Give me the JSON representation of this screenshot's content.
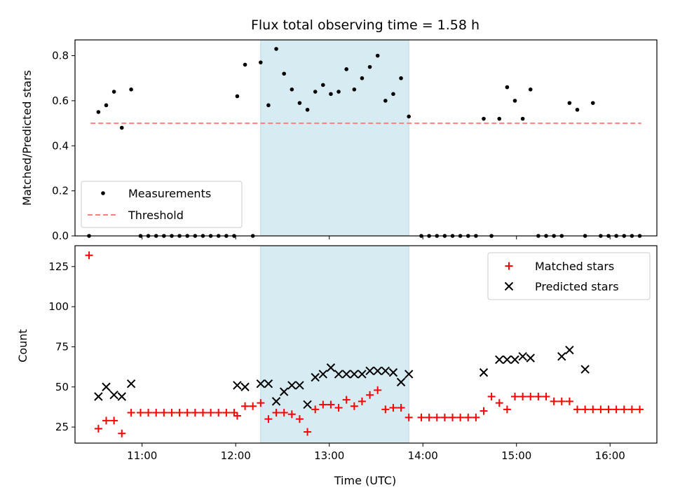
{
  "chart_data": [
    {
      "type": "scatter",
      "title": "Flux total observing time = 1.58 h",
      "xlabel": "",
      "ylabel": "Matched/Predicted stars",
      "ylim": [
        0.0,
        0.87
      ],
      "xlim": [
        "10:17",
        "16:30"
      ],
      "yticks": [
        "0.0",
        "0.2",
        "0.4",
        "0.6",
        "0.8"
      ],
      "grid": false,
      "legend_position": "lower-left",
      "shaded_interval": {
        "start": "12:16",
        "end": "13:51",
        "color": "#add8e6"
      },
      "threshold": {
        "name": "Threshold",
        "value": 0.5,
        "start": "10:27",
        "end": "16:20",
        "color": "#ff7f7f"
      },
      "series": [
        {
          "name": "Measurements",
          "color": "#000000",
          "marker": "dot",
          "x": [
            "10:26",
            "10:32",
            "10:37",
            "10:42",
            "10:47",
            "10:53",
            "10:59",
            "11:04",
            "11:09",
            "11:14",
            "11:19",
            "11:24",
            "11:29",
            "11:34",
            "11:39",
            "11:44",
            "11:49",
            "11:54",
            "11:59",
            "12:01",
            "12:06",
            "12:11",
            "12:16",
            "12:21",
            "12:26",
            "12:31",
            "12:36",
            "12:41",
            "12:46",
            "12:51",
            "12:56",
            "13:01",
            "13:06",
            "13:11",
            "13:16",
            "13:21",
            "13:26",
            "13:31",
            "13:36",
            "13:41",
            "13:46",
            "13:51",
            "13:59",
            "14:04",
            "14:09",
            "14:14",
            "14:19",
            "14:24",
            "14:29",
            "14:34",
            "14:39",
            "14:44",
            "14:49",
            "14:54",
            "14:59",
            "15:04",
            "15:09",
            "15:14",
            "15:19",
            "15:24",
            "15:29",
            "15:34",
            "15:39",
            "15:44",
            "15:49",
            "15:54",
            "15:59",
            "16:04",
            "16:09",
            "16:14",
            "16:19"
          ],
          "values": [
            0.0,
            0.55,
            0.58,
            0.64,
            0.48,
            0.65,
            0.0,
            0.0,
            0.0,
            0.0,
            0.0,
            0.0,
            0.0,
            0.0,
            0.0,
            0.0,
            0.0,
            0.0,
            0.0,
            0.62,
            0.76,
            0.0,
            0.77,
            0.58,
            0.83,
            0.72,
            0.65,
            0.59,
            0.56,
            0.64,
            0.67,
            0.63,
            0.64,
            0.74,
            0.65,
            0.7,
            0.75,
            0.8,
            0.6,
            0.63,
            0.7,
            0.53,
            0.0,
            0.0,
            0.0,
            0.0,
            0.0,
            0.0,
            0.0,
            0.0,
            0.52,
            0.0,
            0.52,
            0.66,
            0.6,
            0.52,
            0.65,
            0.0,
            0.0,
            0.0,
            0.0,
            0.59,
            0.56,
            0.0,
            0.59,
            0.0,
            0.0,
            0.0,
            0.0,
            0.0,
            0.0
          ]
        }
      ]
    },
    {
      "type": "scatter",
      "title": "",
      "xlabel": "Time (UTC)",
      "ylabel": "Count",
      "ylim": [
        15,
        138
      ],
      "xlim": [
        "10:17",
        "16:30"
      ],
      "yticks": [
        "25",
        "50",
        "75",
        "100",
        "125"
      ],
      "xticks": [
        "11:00",
        "12:00",
        "13:00",
        "14:00",
        "15:00",
        "16:00"
      ],
      "grid": false,
      "legend_position": "upper-right",
      "shaded_interval": {
        "start": "12:16",
        "end": "13:51",
        "color": "#add8e6"
      },
      "series": [
        {
          "name": "Matched stars",
          "color": "#ff0000",
          "marker": "plus",
          "x": [
            "10:26",
            "10:32",
            "10:37",
            "10:42",
            "10:47",
            "10:53",
            "10:59",
            "11:04",
            "11:09",
            "11:14",
            "11:19",
            "11:24",
            "11:29",
            "11:34",
            "11:39",
            "11:44",
            "11:49",
            "11:54",
            "11:59",
            "12:01",
            "12:06",
            "12:11",
            "12:16",
            "12:21",
            "12:26",
            "12:31",
            "12:36",
            "12:41",
            "12:46",
            "12:51",
            "12:56",
            "13:01",
            "13:06",
            "13:11",
            "13:16",
            "13:21",
            "13:26",
            "13:31",
            "13:36",
            "13:41",
            "13:46",
            "13:51",
            "13:59",
            "14:04",
            "14:09",
            "14:14",
            "14:19",
            "14:24",
            "14:29",
            "14:34",
            "14:39",
            "14:44",
            "14:49",
            "14:54",
            "14:59",
            "15:04",
            "15:09",
            "15:14",
            "15:19",
            "15:24",
            "15:29",
            "15:34",
            "15:39",
            "15:44",
            "15:49",
            "15:54",
            "15:59",
            "16:04",
            "16:09",
            "16:14",
            "16:19"
          ],
          "values": [
            132,
            24,
            29,
            29,
            21,
            34,
            34,
            34,
            34,
            34,
            34,
            34,
            34,
            34,
            34,
            34,
            34,
            34,
            34,
            32,
            38,
            38,
            40,
            30,
            34,
            34,
            33,
            30,
            22,
            36,
            39,
            39,
            37,
            42,
            38,
            41,
            45,
            48,
            36,
            37,
            37,
            31,
            31,
            31,
            31,
            31,
            31,
            31,
            31,
            31,
            35,
            44,
            40,
            36,
            44,
            44,
            44,
            44,
            44,
            41,
            41,
            41,
            36,
            36,
            36,
            36,
            36,
            36,
            36,
            36,
            36
          ]
        },
        {
          "name": "Predicted stars",
          "color": "#000000",
          "marker": "x",
          "x": [
            "10:32",
            "10:37",
            "10:42",
            "10:47",
            "10:53",
            "12:01",
            "12:06",
            "12:16",
            "12:21",
            "12:26",
            "12:31",
            "12:36",
            "12:41",
            "12:46",
            "12:51",
            "12:56",
            "13:01",
            "13:06",
            "13:11",
            "13:16",
            "13:21",
            "13:26",
            "13:31",
            "13:36",
            "13:41",
            "13:46",
            "13:51",
            "14:39",
            "14:49",
            "14:54",
            "14:59",
            "15:04",
            "15:09",
            "15:29",
            "15:34",
            "15:44"
          ],
          "values": [
            44,
            50,
            45,
            44,
            52,
            51,
            50,
            52,
            52,
            41,
            47,
            51,
            51,
            39,
            56,
            58,
            62,
            58,
            58,
            58,
            58,
            60,
            60,
            60,
            59,
            53,
            58,
            59,
            67,
            67,
            67,
            69,
            68,
            69,
            73,
            61
          ]
        }
      ]
    }
  ]
}
